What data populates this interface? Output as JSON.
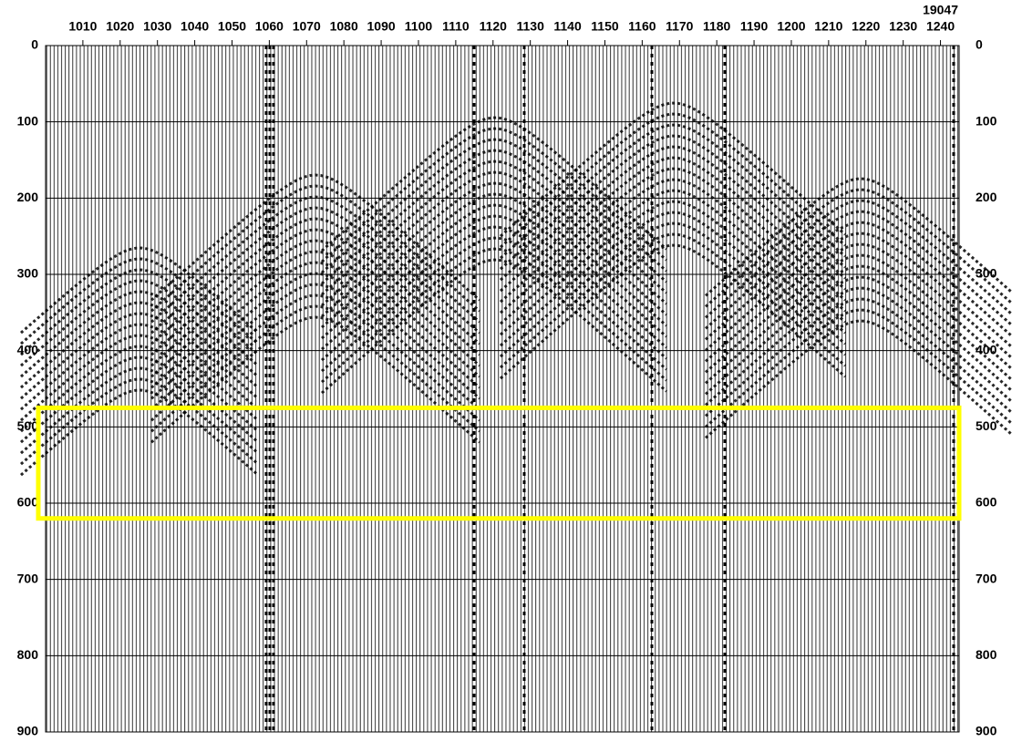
{
  "chart_data": {
    "type": "seismic",
    "annotation": "19047",
    "xlim": [
      1000,
      1245
    ],
    "xticks": [
      1010,
      1020,
      1030,
      1040,
      1050,
      1060,
      1070,
      1080,
      1090,
      1100,
      1110,
      1120,
      1130,
      1140,
      1150,
      1160,
      1170,
      1180,
      1190,
      1200,
      1210,
      1220,
      1230,
      1240
    ],
    "ylim": [
      0,
      900
    ],
    "yticks": [
      0,
      100,
      200,
      300,
      400,
      500,
      600,
      700,
      800,
      900
    ],
    "grid": true,
    "highlight": {
      "ylim": [
        475,
        620
      ],
      "color": "#ffff00"
    }
  }
}
